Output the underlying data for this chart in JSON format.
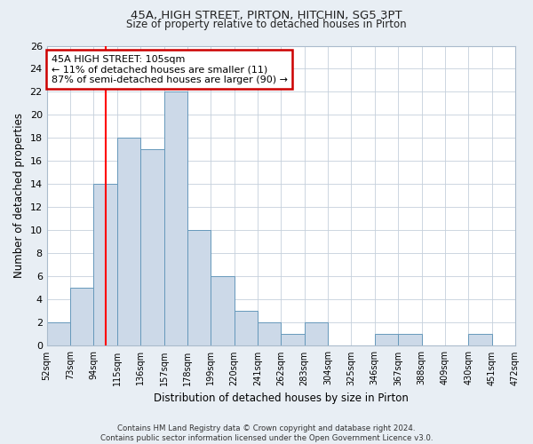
{
  "title1": "45A, HIGH STREET, PIRTON, HITCHIN, SG5 3PT",
  "title2": "Size of property relative to detached houses in Pirton",
  "xlabel": "Distribution of detached houses by size in Pirton",
  "ylabel": "Number of detached properties",
  "bin_labels": [
    "52sqm",
    "73sqm",
    "94sqm",
    "115sqm",
    "136sqm",
    "157sqm",
    "178sqm",
    "199sqm",
    "220sqm",
    "241sqm",
    "262sqm",
    "283sqm",
    "304sqm",
    "325sqm",
    "346sqm",
    "367sqm",
    "388sqm",
    "409sqm",
    "430sqm",
    "451sqm",
    "472sqm"
  ],
  "bin_edges": [
    52,
    73,
    94,
    115,
    136,
    157,
    178,
    199,
    220,
    241,
    262,
    283,
    304,
    325,
    346,
    367,
    388,
    409,
    430,
    451,
    472
  ],
  "bar_heights": [
    2,
    5,
    14,
    18,
    17,
    22,
    10,
    6,
    3,
    2,
    1,
    2,
    0,
    0,
    1,
    1,
    0,
    0,
    1,
    0
  ],
  "bar_fill_color": "#ccd9e8",
  "bar_edge_color": "#6699bb",
  "grid_color": "#c5d0dc",
  "red_line_x": 105,
  "annotation_line1": "45A HIGH STREET: 105sqm",
  "annotation_line2": "← 11% of detached houses are smaller (11)",
  "annotation_line3": "87% of semi-detached houses are larger (90) →",
  "annotation_box_color": "#ffffff",
  "annotation_box_edge": "#cc0000",
  "ylim": [
    0,
    26
  ],
  "yticks": [
    0,
    2,
    4,
    6,
    8,
    10,
    12,
    14,
    16,
    18,
    20,
    22,
    24,
    26
  ],
  "footer_text": "Contains HM Land Registry data © Crown copyright and database right 2024.\nContains public sector information licensed under the Open Government Licence v3.0.",
  "background_color": "#e8eef4",
  "plot_background_color": "#ffffff"
}
